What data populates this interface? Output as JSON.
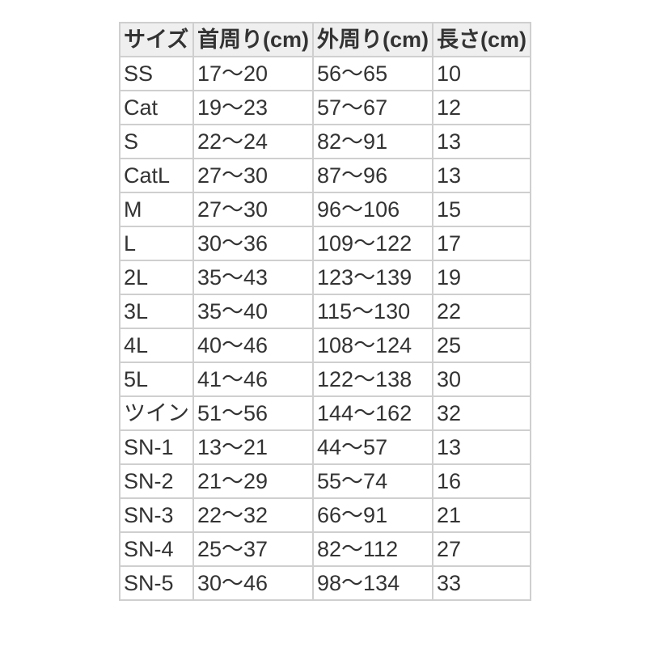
{
  "table": {
    "headers": [
      "サイズ",
      "首周り(cm)",
      "外周り(cm)",
      "長さ(cm)"
    ],
    "rows": [
      [
        "SS",
        "17〜20",
        "56〜65",
        "10"
      ],
      [
        "Cat",
        "19〜23",
        "57〜67",
        "12"
      ],
      [
        "S",
        "22〜24",
        "82〜91",
        "13"
      ],
      [
        "CatL",
        "27〜30",
        "87〜96",
        "13"
      ],
      [
        "M",
        "27〜30",
        "96〜106",
        "15"
      ],
      [
        "L",
        "30〜36",
        "109〜122",
        "17"
      ],
      [
        "2L",
        "35〜43",
        "123〜139",
        "19"
      ],
      [
        "3L",
        "35〜40",
        "115〜130",
        "22"
      ],
      [
        "4L",
        "40〜46",
        "108〜124",
        "25"
      ],
      [
        "5L",
        "41〜46",
        "122〜138",
        "30"
      ],
      [
        "ツイン",
        "51〜56",
        "144〜162",
        "32"
      ],
      [
        "SN-1",
        "13〜21",
        "44〜57",
        "13"
      ],
      [
        "SN-2",
        "21〜29",
        "55〜74",
        "16"
      ],
      [
        "SN-3",
        "22〜32",
        "66〜91",
        "21"
      ],
      [
        "SN-4",
        "25〜37",
        "82〜112",
        "27"
      ],
      [
        "SN-5",
        "30〜46",
        "98〜134",
        "33"
      ]
    ]
  }
}
